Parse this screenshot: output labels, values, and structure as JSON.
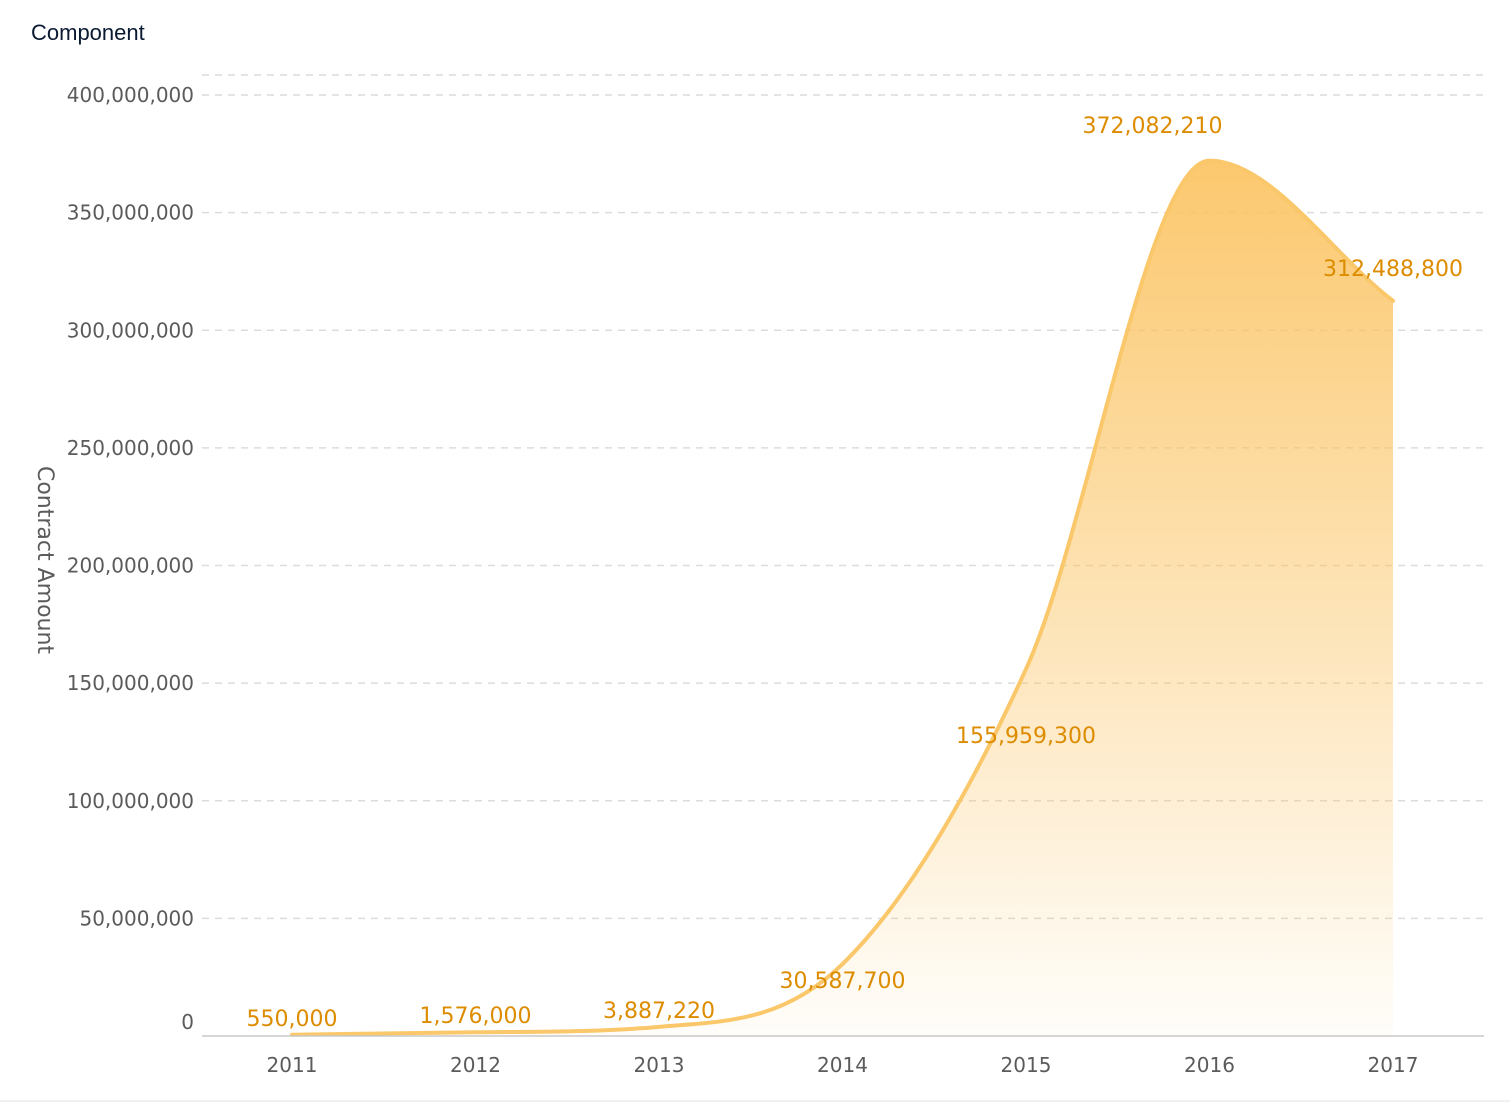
{
  "chart_data": {
    "type": "area",
    "title": "Component",
    "xlabel": "",
    "ylabel": "Contract Amount",
    "categories": [
      "2011",
      "2012",
      "2013",
      "2014",
      "2015",
      "2016",
      "2017"
    ],
    "series": [
      {
        "name": "",
        "values": [
          550000,
          1576000,
          3887220,
          30587700,
          155959300,
          372082210,
          312488800
        ],
        "labels": [
          "550,000",
          "1,576,000",
          "3,887,220",
          "30,587,700",
          "155,959,300",
          "372,082,210",
          "312,488,800"
        ]
      }
    ],
    "ylim": [
      0,
      400000000
    ],
    "yticks": [
      0,
      50000000,
      100000000,
      150000000,
      200000000,
      250000000,
      300000000,
      350000000,
      400000000
    ],
    "ytick_labels": [
      "0",
      "50,000,000",
      "100,000,000",
      "150,000,000",
      "200,000,000",
      "250,000,000",
      "300,000,000",
      "350,000,000",
      "400,000,000"
    ],
    "grid": true,
    "smooth": true,
    "colors": {
      "line": "#fac76a",
      "fill_top": "#fbc25e",
      "label": "#dd8c00"
    }
  }
}
